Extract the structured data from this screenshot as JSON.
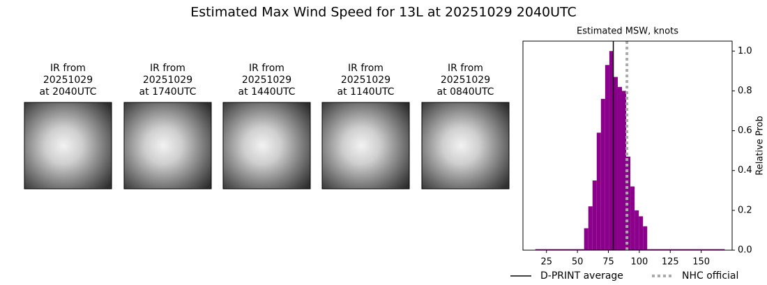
{
  "title": "Estimated Max Wind Speed for 13L at 20251029 2040UTC",
  "panels": [
    {
      "lines": [
        "IR from",
        "20251029",
        "at 2040UTC"
      ]
    },
    {
      "lines": [
        "IR from",
        "20251029",
        "at 1740UTC"
      ]
    },
    {
      "lines": [
        "IR from",
        "20251029",
        "at 1440UTC"
      ]
    },
    {
      "lines": [
        "IR from",
        "20251029",
        "at 1140UTC"
      ]
    },
    {
      "lines": [
        "IR from",
        "20251029",
        "at 0840UTC"
      ]
    }
  ],
  "chart_data": {
    "type": "histogram",
    "title": "Estimated MSW, knots",
    "ylabel": "Relative Prob",
    "bins": [
      16,
      55.4,
      58.8,
      62.2,
      65.6,
      69.0,
      72.4,
      75.8,
      79.2,
      82.6,
      86.0,
      89.4,
      92.8,
      96.2,
      99.6,
      103.0,
      106.4,
      169
    ],
    "values": [
      0.005,
      0.11,
      0.22,
      0.35,
      0.59,
      0.76,
      0.93,
      1.0,
      0.87,
      0.82,
      0.8,
      0.47,
      0.32,
      0.2,
      0.17,
      0.12,
      0.005
    ],
    "color": "#8b008b",
    "xlim": [
      6,
      175
    ],
    "ylim": [
      0,
      1.05
    ],
    "xticks": [
      25,
      50,
      75,
      100,
      125,
      150
    ],
    "yticks": [
      {
        "value": 0,
        "label": "0.0"
      },
      {
        "value": 0.2,
        "label": "0.2"
      },
      {
        "value": 0.4,
        "label": "0.4"
      },
      {
        "value": 0.6,
        "label": "0.6"
      },
      {
        "value": 0.8,
        "label": "0.8"
      },
      {
        "value": 1.0,
        "label": "1.0"
      }
    ],
    "lines": [
      {
        "name": "D-PRINT average",
        "value": 79,
        "color": "#000000",
        "style": "solid"
      },
      {
        "name": "NHC official",
        "value": 90,
        "color": "#aaaaaa",
        "style": "dotted"
      }
    ],
    "legend": "bottom"
  }
}
